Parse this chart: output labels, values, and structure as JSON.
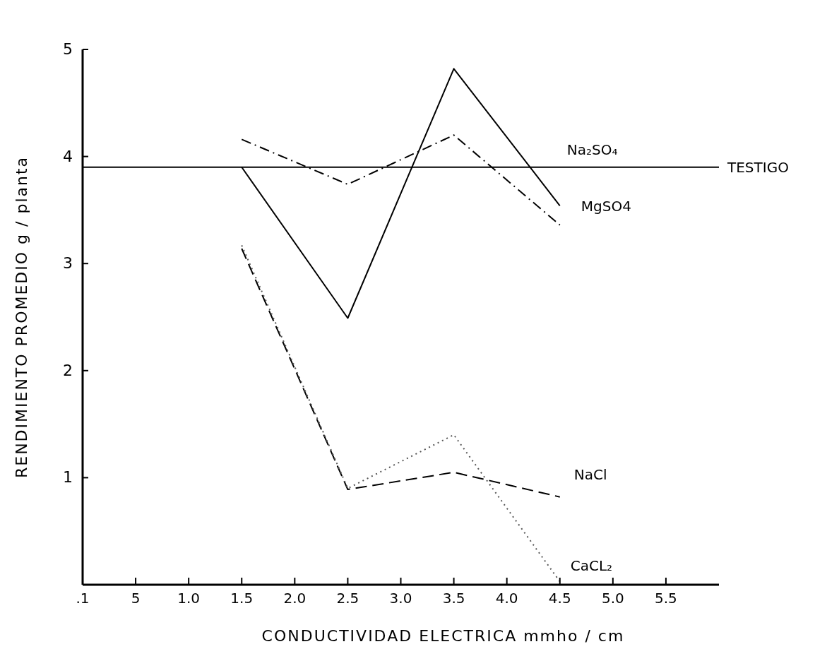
{
  "chart_data": {
    "type": "line",
    "xlabel": "CONDUCTIVIDAD ELECTRICA mmho / cm",
    "ylabel": "RENDIMIENTO PROMEDIO g / planta",
    "categories": [
      ".1",
      "5",
      "1.0",
      "1.5",
      "2.0",
      "2.5",
      "3.0",
      "3.5",
      "4.0",
      "4.5",
      "5.0",
      "5.5"
    ],
    "series": [
      {
        "name": "Na₂SO₄",
        "color": "#000000",
        "line_style": "solid",
        "values": [
          null,
          null,
          null,
          3.9,
          null,
          2.49,
          null,
          4.82,
          null,
          3.54,
          null,
          null
        ]
      },
      {
        "name": "MgSO4",
        "color": "#000000",
        "line_style": "dashdot",
        "values": [
          null,
          null,
          null,
          4.16,
          null,
          3.74,
          null,
          4.2,
          null,
          3.36,
          null,
          null
        ]
      },
      {
        "name": "NaCl",
        "color": "#000000",
        "line_style": "dashed",
        "values": [
          null,
          null,
          null,
          3.14,
          null,
          0.89,
          null,
          1.05,
          null,
          0.82,
          null,
          null
        ]
      },
      {
        "name": "CaCL₂",
        "color": "#555555",
        "line_style": "dotted",
        "values": [
          null,
          null,
          null,
          3.17,
          null,
          0.9,
          null,
          1.4,
          null,
          0.03,
          null,
          null
        ]
      }
    ],
    "ylim": [
      0,
      5
    ],
    "yticks": [
      1,
      2,
      3,
      4,
      5
    ],
    "ref_lines": [
      {
        "axis": "y",
        "value": 3.9,
        "label": "TESTIGO",
        "color": "#000000",
        "line_style": "solid"
      }
    ],
    "grid": false,
    "marker": "none"
  }
}
